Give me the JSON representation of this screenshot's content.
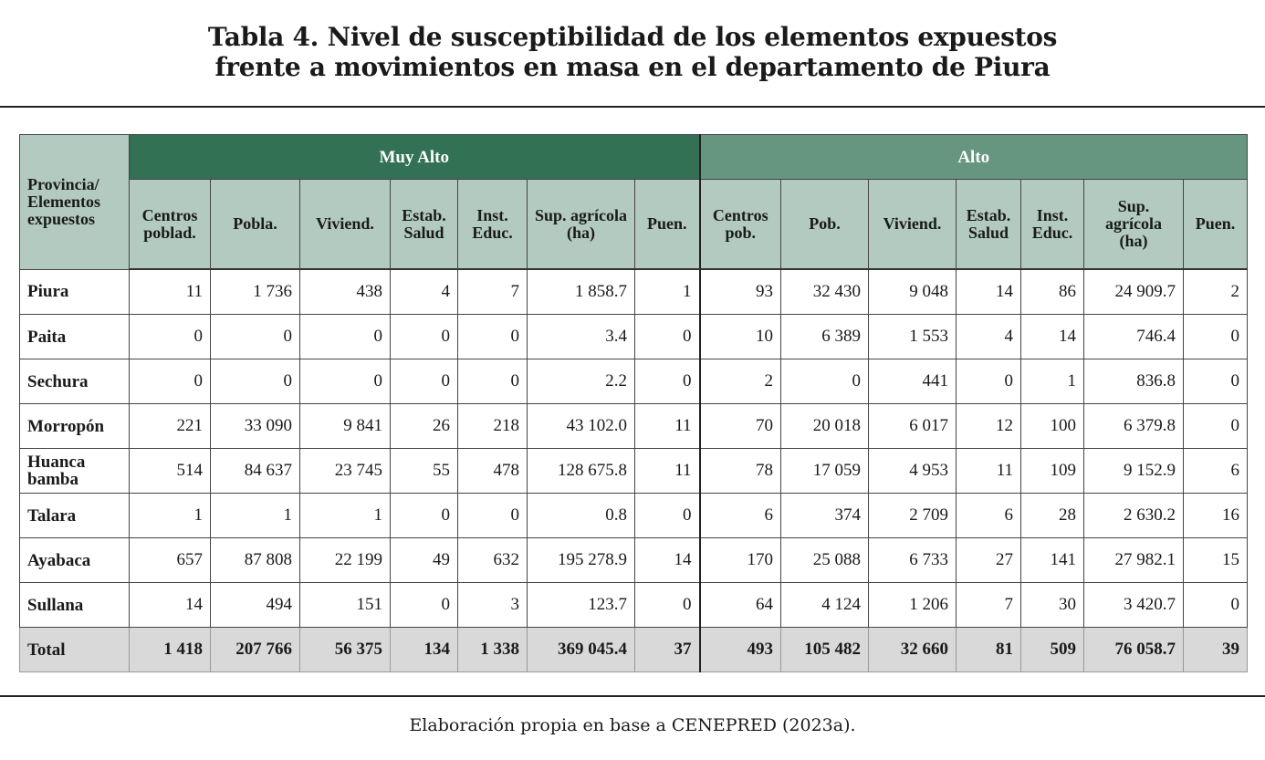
{
  "title": {
    "line1": "Tabla 4. Nivel de susceptibilidad de los elementos expuestos",
    "line2": "frente a movimientos en masa en el departamento de Piura"
  },
  "table": {
    "corner_header": "Provincia/ Elementos expuestos",
    "groups": [
      "Muy Alto",
      "Alto"
    ],
    "group_colors": [
      "#327153",
      "#66967f"
    ],
    "columns_muy_alto": [
      "Centros poblad.",
      "Pobla.",
      "Viviend.",
      "Estab. Salud",
      "Inst. Educ.",
      "Sup. agrícola (ha)",
      "Puen."
    ],
    "columns_alto": [
      "Centros pob.",
      "Pob.",
      "Viviend.",
      "Estab. Salud",
      "Inst. Educ.",
      "Sup. agrícola (ha)",
      "Puen."
    ],
    "rows": [
      {
        "name": "Piura",
        "values": [
          "11",
          "1 736",
          "438",
          "4",
          "7",
          "1 858.7",
          "1",
          "93",
          "32 430",
          "9 048",
          "14",
          "86",
          "24 909.7",
          "2"
        ]
      },
      {
        "name": "Paita",
        "values": [
          "0",
          "0",
          "0",
          "0",
          "0",
          "3.4",
          "0",
          "10",
          "6 389",
          "1 553",
          "4",
          "14",
          "746.4",
          "0"
        ]
      },
      {
        "name": "Sechura",
        "values": [
          "0",
          "0",
          "0",
          "0",
          "0",
          "2.2",
          "0",
          "2",
          "0",
          "441",
          "0",
          "1",
          "836.8",
          "0"
        ]
      },
      {
        "name": "Morropón",
        "values": [
          "221",
          "33 090",
          "9 841",
          "26",
          "218",
          "43 102.0",
          "11",
          "70",
          "20 018",
          "6 017",
          "12",
          "100",
          "6 379.8",
          "0"
        ]
      },
      {
        "name": "Huanca bamba",
        "values": [
          "514",
          "84 637",
          "23 745",
          "55",
          "478",
          "128 675.8",
          "11",
          "78",
          "17 059",
          "4 953",
          "11",
          "109",
          "9 152.9",
          "6"
        ]
      },
      {
        "name": "Talara",
        "values": [
          "1",
          "1",
          "1",
          "0",
          "0",
          "0.8",
          "0",
          "6",
          "374",
          "2 709",
          "6",
          "28",
          "2 630.2",
          "16"
        ]
      },
      {
        "name": "Ayabaca",
        "values": [
          "657",
          "87 808",
          "22 199",
          "49",
          "632",
          "195 278.9",
          "14",
          "170",
          "25 088",
          "6 733",
          "27",
          "141",
          "27 982.1",
          "15"
        ]
      },
      {
        "name": "Sullana",
        "values": [
          "14",
          "494",
          "151",
          "0",
          "3",
          "123.7",
          "0",
          "64",
          "4 124",
          "1 206",
          "7",
          "30",
          "3 420.7",
          "0"
        ]
      }
    ],
    "total": {
      "name": "Total",
      "values": [
        "1 418",
        "207 766",
        "56 375",
        "134",
        "1 338",
        "369 045.4",
        "37",
        "493",
        "105 482",
        "32 660",
        "81",
        "509",
        "76 058.7",
        "39"
      ]
    }
  },
  "source": "Elaboración propia en base a CENEPRED (2023a)."
}
